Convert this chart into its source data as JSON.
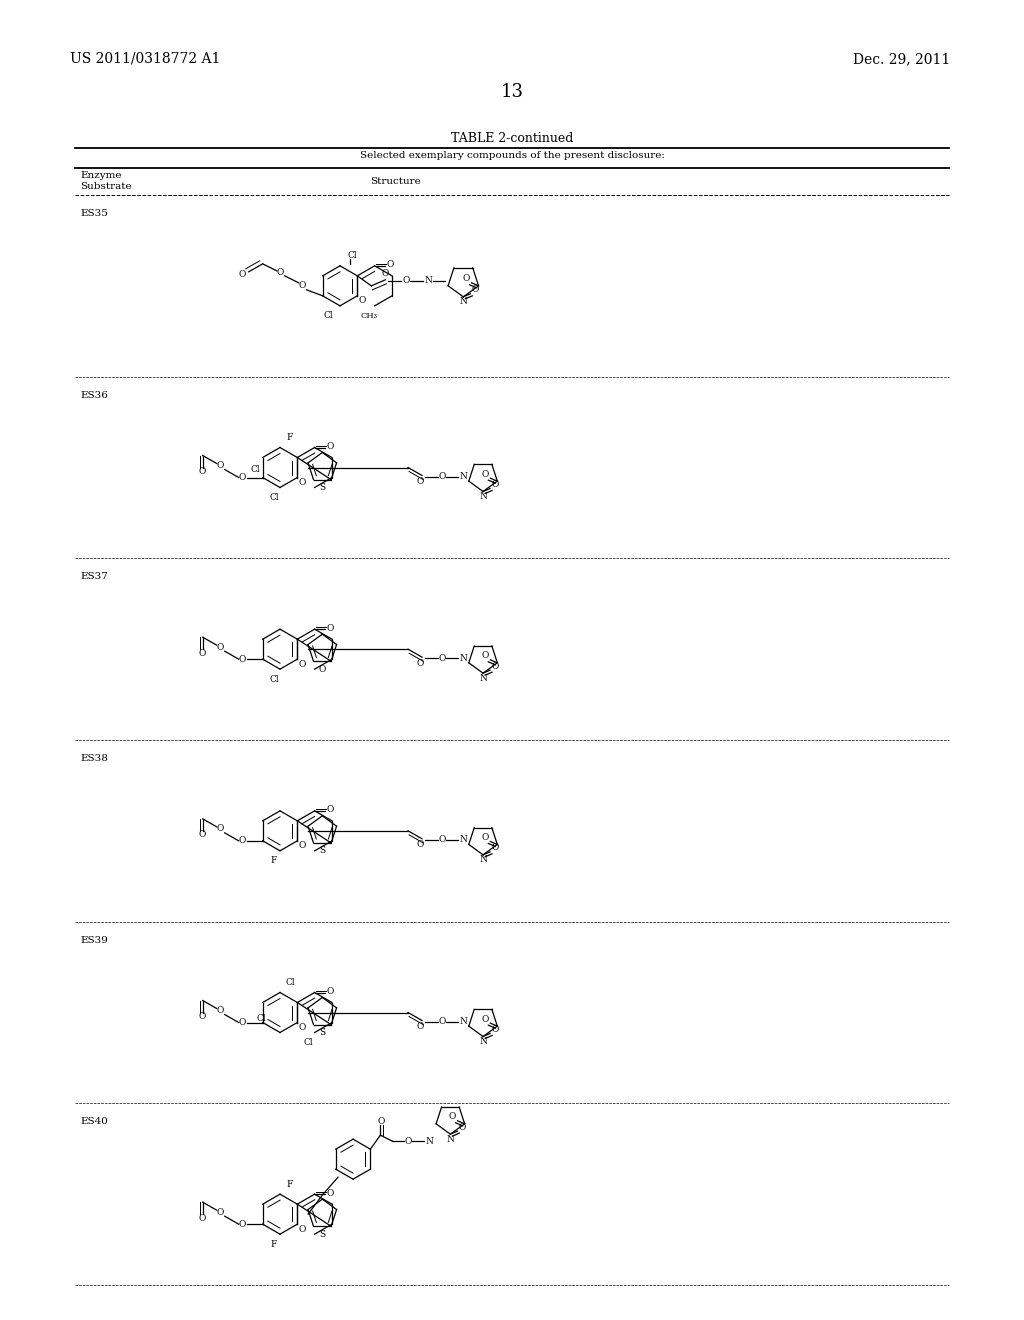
{
  "patent_number": "US 2011/0318772 A1",
  "date": "Dec. 29, 2011",
  "page_number": "13",
  "table_title": "TABLE 2-continued",
  "table_subtitle": "Selected exemplary compounds of the present disclosure:",
  "col1_header_line1": "Enzyme",
  "col1_header_line2": "Substrate",
  "col2_header": "Structure",
  "entries": [
    "ES35",
    "ES36",
    "ES37",
    "ES38",
    "ES39",
    "ES40"
  ],
  "bg_color": "#ffffff"
}
